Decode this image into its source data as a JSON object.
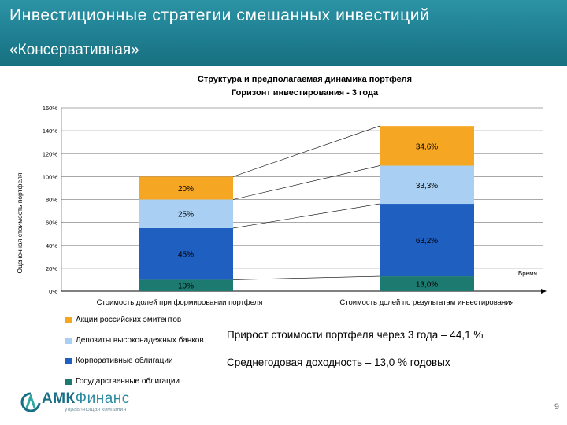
{
  "slide": {
    "title": "Инвестиционные стратегии смешанных инвестиций",
    "subtitle": "«Консервативная»",
    "page_number": "9"
  },
  "colors": {
    "header": "#1f7f92",
    "equities": "#f5a623",
    "deposits": "#a9d0f2",
    "corporate": "#1f5fbf",
    "government": "#1d7a70"
  },
  "chart_data": {
    "type": "bar",
    "stacked": true,
    "title": "Структура и предполагаемая динамика портфеля",
    "subtitle": "Горизонт инвестирования - 3 года",
    "ylabel": "Оценочная стоимость портфеля",
    "xlabel": "Время",
    "ylim": [
      0,
      160
    ],
    "yticks": [
      0,
      20,
      40,
      60,
      80,
      100,
      120,
      140,
      160
    ],
    "categories": [
      "Стоимость долей при формировании портфеля",
      "Стоимость долей по результатам инвестирования"
    ],
    "series": [
      {
        "name": "Государственные облигации",
        "color_key": "government",
        "values": [
          10,
          13.0
        ],
        "labels": [
          "10%",
          "13,0%"
        ]
      },
      {
        "name": "Корпоративные облигации",
        "color_key": "corporate",
        "values": [
          45,
          63.2
        ],
        "labels": [
          "45%",
          "63,2%"
        ]
      },
      {
        "name": "Депозиты высоконадежных банков",
        "color_key": "deposits",
        "values": [
          25,
          33.3
        ],
        "labels": [
          "25%",
          "33,3%"
        ]
      },
      {
        "name": "Акции российских эмитентов",
        "color_key": "equities",
        "values": [
          20,
          34.6
        ],
        "labels": [
          "20%",
          "34,6%"
        ]
      }
    ],
    "grid": true,
    "legend_position": "bottom-left"
  },
  "legend_order": [
    3,
    2,
    1,
    0
  ],
  "info": {
    "growth": "Прирост стоимости портфеля через 3 года – 44,1 %",
    "annual_yield": "Среднегодовая доходность – 13,0 % годовых"
  },
  "logo": {
    "brand_bold": "АМК",
    "brand_light": "Финанс",
    "tagline": "управляющая компания",
    "icon": "amk-logo-icon"
  }
}
